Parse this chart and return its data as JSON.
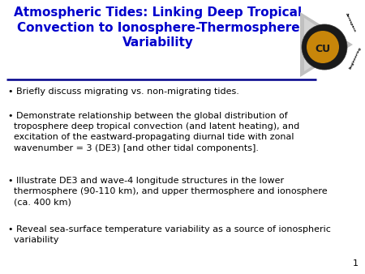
{
  "title_line1": "Atmospheric Tides: Linking Deep Tropical",
  "title_line2": "Convection to Ionosphere-Thermosphere",
  "title_line3": "Variability",
  "title_color": "#0000CC",
  "title_fontsize": 11.0,
  "background_color": "#FFFFFF",
  "separator_color": "#00008B",
  "bullet1": "Briefly discuss migrating vs. non-migrating tides.",
  "bullet2_line1": "Demonstrate relationship between the global distribution of",
  "bullet2_line2": "troposphere deep tropical convection (and latent heating), and",
  "bullet2_line3": "excitation of the eastward-propagating diurnal tide with zonal",
  "bullet2_line4": "wavenumber = 3 (DE3) [and other tidal components].",
  "bullet3_line1": "Illustrate DE3 and wave-4 longitude structures in the lower",
  "bullet3_line2": "thermosphere (90-110 km), and upper thermosphere and ionosphere",
  "bullet3_line3": "(ca. 400 km)",
  "bullet4_line1": "Reveal sea-surface temperature variability as a source of ionospheric",
  "bullet4_line2": "variability",
  "text_color": "#000000",
  "text_fontsize": 8.0,
  "page_number": "1",
  "page_number_color": "#000000",
  "page_number_fontsize": 8
}
